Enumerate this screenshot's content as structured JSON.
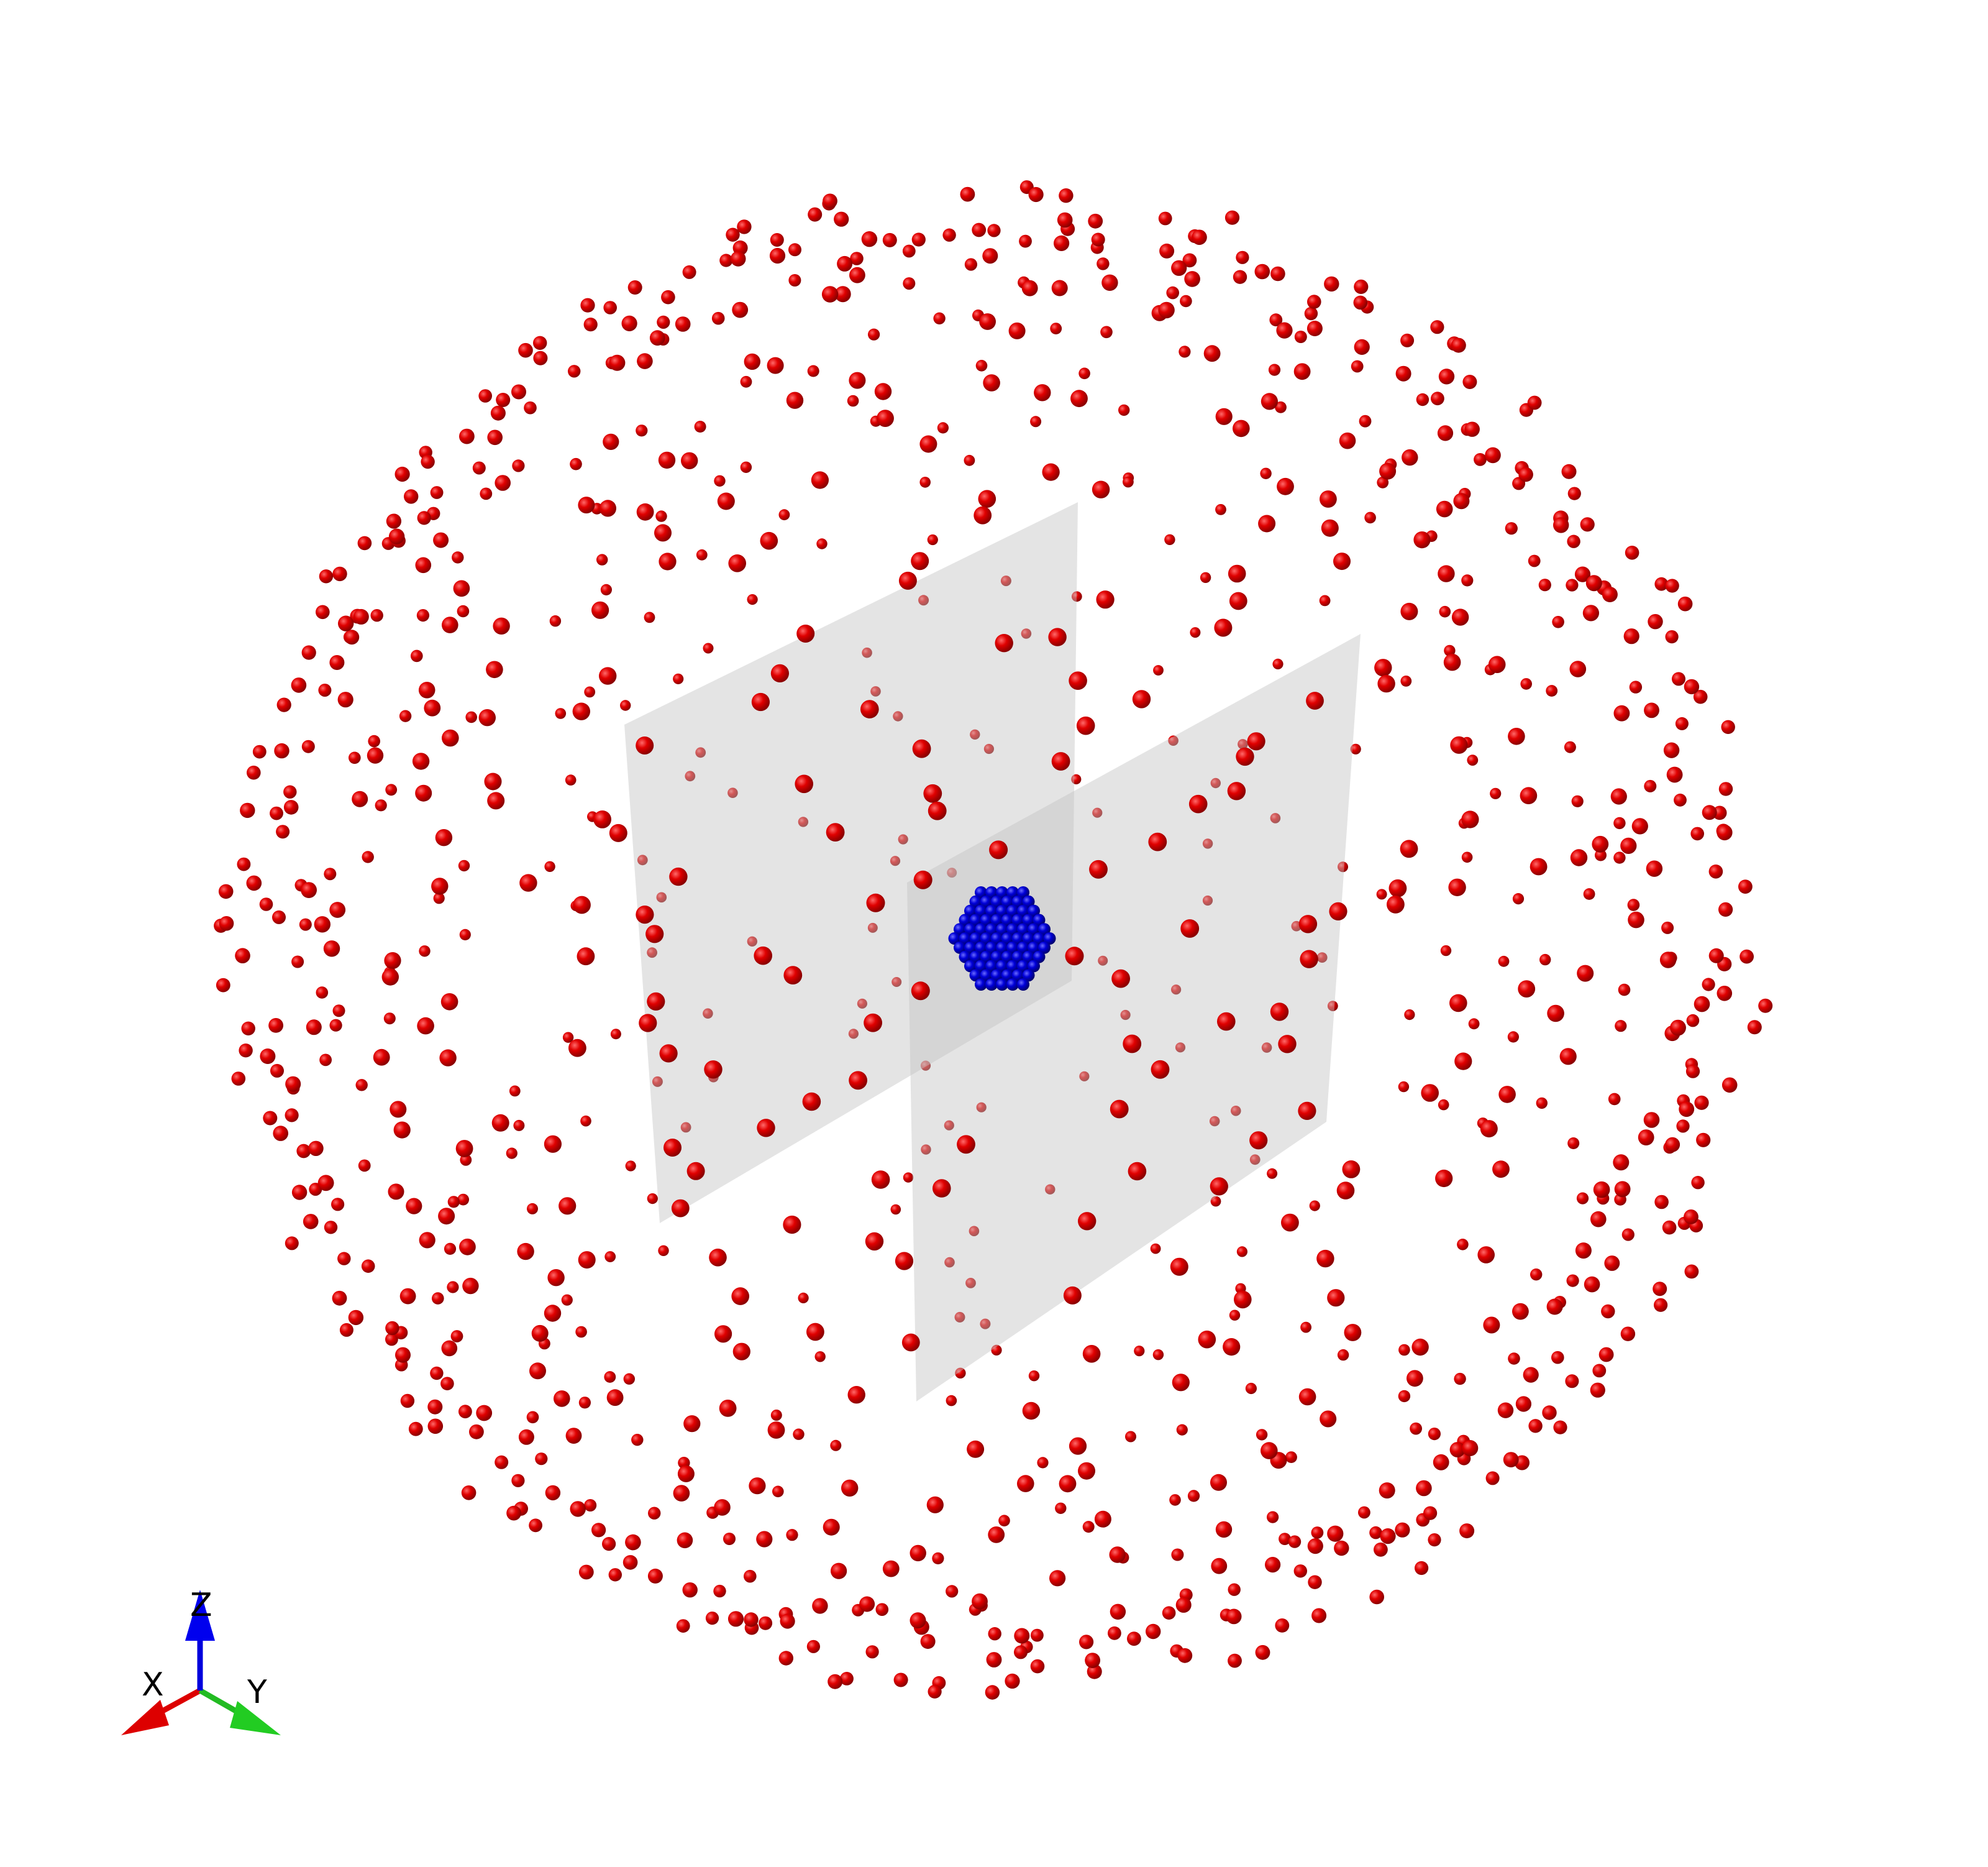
{
  "scene": {
    "background": "#ffffff",
    "outer_sphere_color": "#e00000",
    "cluster_color": "#0000d0",
    "plane_color": "#d9d9d9"
  },
  "axis_triad": {
    "x_label": "X",
    "y_label": "Y",
    "z_label": "Z",
    "x_color": "#dd0000",
    "y_color": "#22cc22",
    "z_color": "#0000ee"
  }
}
